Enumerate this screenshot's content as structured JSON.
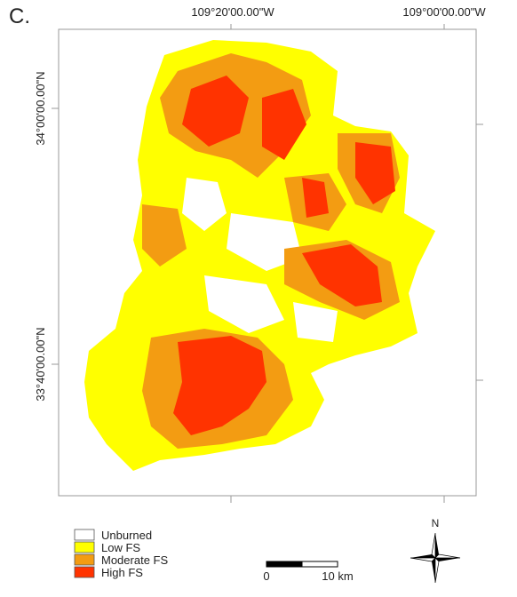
{
  "panel_label": "C.",
  "map": {
    "x_labels": [
      "109°20'00.00\"W",
      "109°00'00.00\"W"
    ],
    "y_labels": [
      "34°00'00.00\"N",
      "33°40'00.00\"N"
    ]
  },
  "legend": [
    {
      "label": "Unburned",
      "color": "#ffffff"
    },
    {
      "label": "Low FS",
      "color": "#ffff00"
    },
    {
      "label": "Moderate FS",
      "color": "#f39c12"
    },
    {
      "label": "High FS",
      "color": "#ff3300"
    }
  ],
  "scale_bar": {
    "labels": [
      "0",
      "10 km"
    ]
  },
  "north_arrow": {
    "label": "N"
  }
}
